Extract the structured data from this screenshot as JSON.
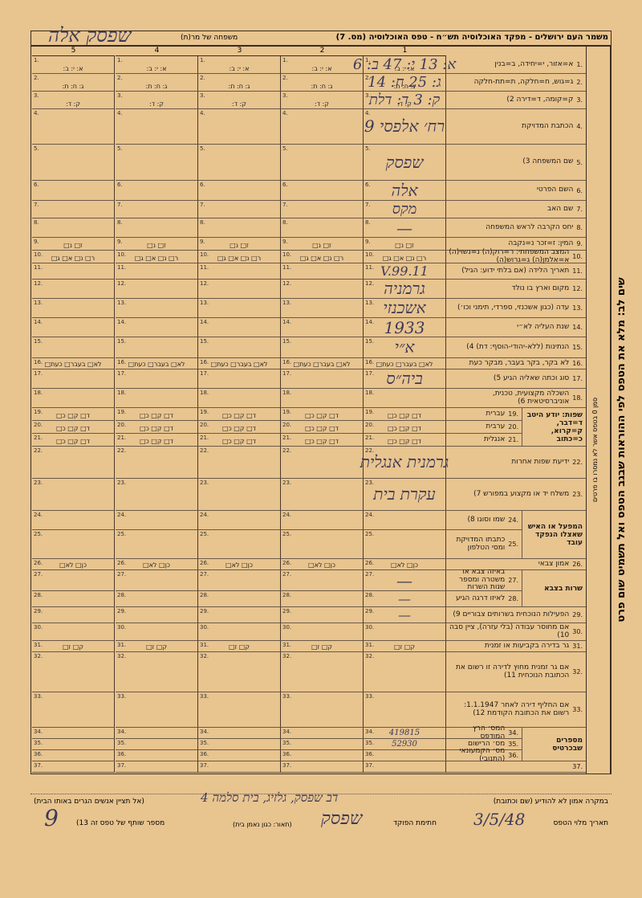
{
  "header": {
    "title": "משמר העם ירושלים - מפקד האוכלוסיה תש״ח - טפס האוכלוסיה (מס. 7)",
    "family_label": "משפחה של מר(ת)",
    "family_name": "שפסק אלה"
  },
  "columns": [
    "1",
    "2",
    "3",
    "4",
    "5"
  ],
  "rows": [
    {
      "num": "1.",
      "label": "א=אזור, י=יחידה, ב=בנין",
      "options": "א:  י:  ב:",
      "entry": "א: 13 י: 47 ב: 6"
    },
    {
      "num": "2.",
      "label": "ג=גוש, ח=חלקה, ת=תת-חלקה",
      "options": "ג:  ח:  ת:",
      "entry": "ג: 25 ח: 14"
    },
    {
      "num": "3.",
      "label": "ק=קומה, ד=דירה 2)",
      "options": "ק:  ד:",
      "entry": "ק: 3 ד: דלת"
    },
    {
      "num": "4.",
      "label": "הכתבת המדויקת",
      "entry": "רח׳ אלפסי 9"
    },
    {
      "num": "5.",
      "label": "שם המשפחה 3)",
      "entry": "שפסק"
    },
    {
      "num": "6.",
      "label": "השם הפרטי",
      "entry": "אלה"
    },
    {
      "num": "7.",
      "label": "שם האב",
      "entry": "מקס"
    },
    {
      "num": "8.",
      "label": "יחס הקרבה לראש המשפחה",
      "entry": "—"
    },
    {
      "num": "9.",
      "label": "המין: ז=זכר נ=נקבה",
      "options": "ז□  נ□"
    },
    {
      "num": "10.",
      "label": "המצב המשפחתי: ר=רוק(ה) נ=נשוי(ה) א=אלמן(ה) ג=גרוש(ה)",
      "options": "ר□ נ□ א□ ג□"
    },
    {
      "num": "11.",
      "label": "תאריך הלידה (אם בלתי ידוע: הגיל)",
      "entry": "11.V.99"
    },
    {
      "num": "12.",
      "label": "מקום וארץ בו נולד",
      "entry": "גרמניה"
    },
    {
      "num": "13.",
      "label": "עדה (כגון אשכנזי, ספרדי, תימני וכו׳)",
      "entry": "אשכנזי"
    },
    {
      "num": "14.",
      "label": "שנת העליה לא״י",
      "entry": "1933"
    },
    {
      "num": "15.",
      "label": "הנתינות (ללא-יהודי-הוסף: דת) 4)",
      "entry": "א״י"
    },
    {
      "num": "16.",
      "label": "לא בקר, בקר בעבר, מבקר כעת",
      "options": "לא□ בעבר□ כעת□"
    },
    {
      "num": "17.",
      "label": "סוג וכתה שאליה הגיע 5)",
      "entry": "ביה״ס"
    },
    {
      "num": "18.",
      "label": "השכלה מקצועית, טכנית, אוניברסיטאית 6)"
    },
    {
      "num": "19.",
      "label": "עברית",
      "options": "ד□ ק□ כ□",
      "group": 0
    },
    {
      "num": "20.",
      "label": "ערבית",
      "options": "ד□ ק□ כ□",
      "group": 0
    },
    {
      "num": "21.",
      "label": "אנגלית",
      "options": "ד□ ק□ כ□",
      "group": 0
    },
    {
      "num": "22.",
      "label": "ידיעת שפות אחרות",
      "entry": "גרמנית אנגלית"
    },
    {
      "num": "23.",
      "label": "משלח יד או מקצוע במפורש 7)",
      "entry": "עקרת בית"
    },
    {
      "num": "24.",
      "label": "שמו וסוגו 8)",
      "group": 1
    },
    {
      "num": "25.",
      "label": "כתבתו המדויקת ומסי הטלפון",
      "group": 1
    },
    {
      "num": "26.",
      "label": "אמון צבאי",
      "options": "כן□  לא□"
    },
    {
      "num": "27.",
      "label": "באיזה צבא או משטרה ומספר שנות השרות",
      "entry": "—",
      "group": 2
    },
    {
      "num": "28.",
      "label": "לאיזו דרגה הגיע",
      "entry": "—",
      "group": 2
    },
    {
      "num": "29.",
      "label": "הפעילות הנוכחית בשרותים צבוריים 9)",
      "entry": "—"
    },
    {
      "num": "30.",
      "label": "אם מחוסר עבודה (בלי עזרה), ציין סבה 10)"
    },
    {
      "num": "31.",
      "label": "גר בדירה בקביעות או זמנית",
      "options": "ק□  ז□"
    },
    {
      "num": "32.",
      "label": "אם גר זמנית מחוץ לדירה זו רשום את הכתובת הנוכחית 11)"
    },
    {
      "num": "33.",
      "label": "אם החליף דירה לאחר 1.1.1947: רשום את הכתובת הקודמת 12)"
    },
    {
      "num": "34.",
      "label": "המס׳ הרץ המודפס",
      "entry": "419815",
      "group": 3
    },
    {
      "num": "35.",
      "label": "מס׳ הרישום",
      "entry": "52930",
      "group": 3
    },
    {
      "num": "36.",
      "label": "מס׳ הקמעונאי (התנובי)",
      "group": 3
    },
    {
      "num": "37.",
      "label": ""
    }
  ],
  "groups": [
    {
      "label": "שפות: יודע היטב ד=דבר, ק=קרוא, כ=כתוב"
    },
    {
      "label": "המפעל או האיש שאצלו הנפקד עובד"
    },
    {
      "label": "שרות בצבא"
    },
    {
      "label": "מספרים שבכרטיס"
    }
  ],
  "footer": {
    "trust_label": "במקרה אמון לא להודיע (שם וכתובת)",
    "trust_note": "(אל תציין אנשים הגרים באותו הבית)",
    "trust_entry": "דב שפסק, גלזיג, בית סלמה 4",
    "date_label": "תאריך מלוי הטפס",
    "date": "3/5/48",
    "signature_label": "חתימת הפוקד",
    "signature": "שפסק",
    "description_label": "(תאור: כגון נאמן בית)",
    "partner_label": "מספר שותף של טפס זה 13)",
    "partner_number": "9"
  },
  "margin": {
    "main": "שים לב: מלא את הטפס לפי ההוראות שבגב הטפס ואל תשמיט שום פרט",
    "side": "סמן 0 בטפס אשר לא נמסרו בו פרטים"
  }
}
